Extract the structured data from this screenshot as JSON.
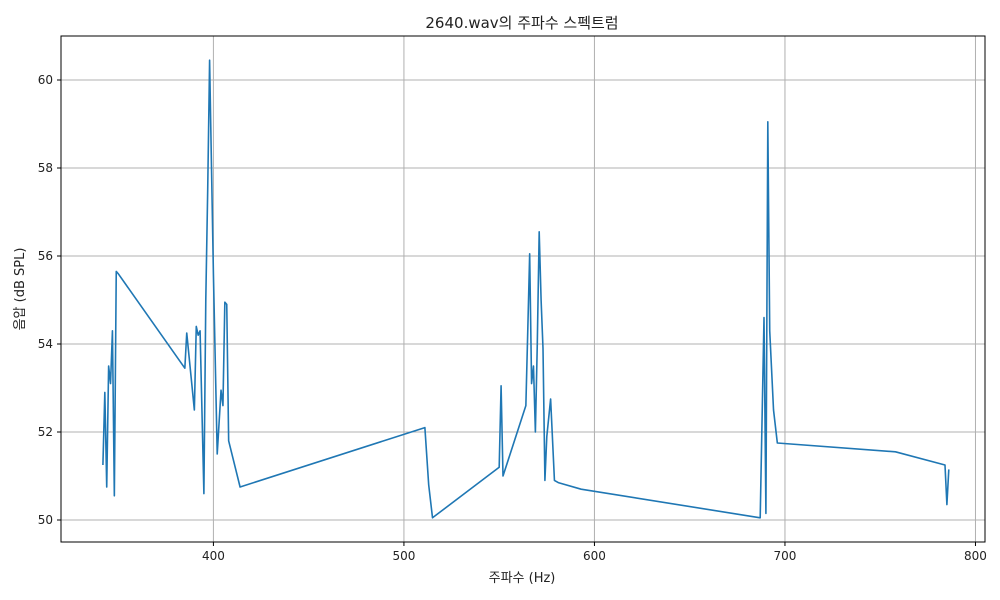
{
  "chart_data": {
    "type": "line",
    "title": "2640.wav의 주파수 스펙트럼",
    "xlabel": "주파수 (Hz)",
    "ylabel": "음압 (dB SPL)",
    "xlim": [
      320,
      805
    ],
    "ylim": [
      49.5,
      61.0
    ],
    "xticks": [
      400,
      500,
      600,
      700,
      800
    ],
    "yticks": [
      50,
      52,
      54,
      56,
      58,
      60
    ],
    "grid": true,
    "line_color": "#1f77b4",
    "series": [
      {
        "x": [
          342.0,
          343.0,
          344.0,
          345.0,
          346.0,
          347.0,
          348.0,
          349.0,
          350.0,
          385.0,
          386.0,
          390.0,
          391.0,
          392.0,
          393.0,
          395.0,
          396.0,
          397.0,
          398.0,
          399.0,
          400.0,
          402.0,
          404.0,
          405.0,
          406.0,
          407.0,
          408.0,
          414.0,
          511.0,
          513.0,
          515.0,
          550.0,
          551.0,
          552.0,
          564.0,
          565.0,
          566.0,
          567.0,
          568.0,
          569.0,
          570.0,
          571.0,
          572.0,
          573.0,
          574.0,
          575.0,
          577.0,
          579.0,
          581.0,
          593.0,
          687.0,
          689.0,
          690.0,
          691.0,
          692.0,
          694.0,
          696.0,
          758.0,
          784.0,
          785.0,
          786.0
        ],
        "y": [
          51.25,
          52.9,
          50.75,
          53.5,
          53.1,
          54.3,
          50.55,
          55.65,
          55.6,
          53.45,
          54.25,
          52.5,
          54.4,
          54.2,
          54.3,
          50.6,
          55.0,
          57.5,
          60.45,
          58.0,
          55.6,
          51.5,
          52.95,
          52.6,
          54.95,
          54.9,
          51.8,
          50.75,
          52.1,
          50.8,
          50.05,
          51.2,
          53.05,
          51.0,
          52.6,
          54.3,
          56.05,
          53.1,
          53.5,
          52.0,
          54.0,
          56.55,
          55.0,
          53.9,
          50.9,
          51.9,
          52.75,
          50.9,
          50.85,
          50.7,
          50.05,
          54.6,
          50.15,
          59.05,
          54.3,
          52.5,
          51.75,
          51.55,
          51.25,
          50.35,
          51.15
        ]
      }
    ]
  }
}
